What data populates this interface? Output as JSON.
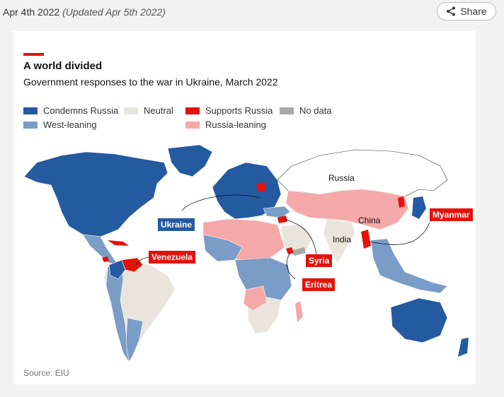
{
  "header": {
    "date": "Apr 4th 2022",
    "updated": "(Updated Apr 5th 2022)",
    "share_label": "Share",
    "share_icon": "share-icon"
  },
  "chart": {
    "title": "A world divided",
    "subtitle": "Government responses to the war in Ukraine, March 2022",
    "source": "Source: EIU"
  },
  "legend": [
    {
      "label": "Condemns Russia",
      "color": "#245aa0"
    },
    {
      "label": "Neutral",
      "color": "#e9e5dc"
    },
    {
      "label": "Supports Russia",
      "color": "#e3120b"
    },
    {
      "label": "No data",
      "color": "#a9a9a9"
    },
    {
      "label": "West-leaning",
      "color": "#7a9cc6"
    },
    {
      "label": "Russia-leaning",
      "color": "#f4a8a8"
    }
  ],
  "labels": {
    "russia": "Russia",
    "china": "China",
    "india": "India",
    "ukraine": "Ukraine",
    "venezuela": "Venezuela",
    "syria": "Syria",
    "eritrea": "Eritrea",
    "myanmar": "Myanmar"
  },
  "colors": {
    "condemns": "#245aa0",
    "west": "#7a9cc6",
    "neutral": "#e9e5dc",
    "supports": "#e3120b",
    "russia_leaning": "#f4a8a8",
    "nodata": "#a9a9a9"
  }
}
